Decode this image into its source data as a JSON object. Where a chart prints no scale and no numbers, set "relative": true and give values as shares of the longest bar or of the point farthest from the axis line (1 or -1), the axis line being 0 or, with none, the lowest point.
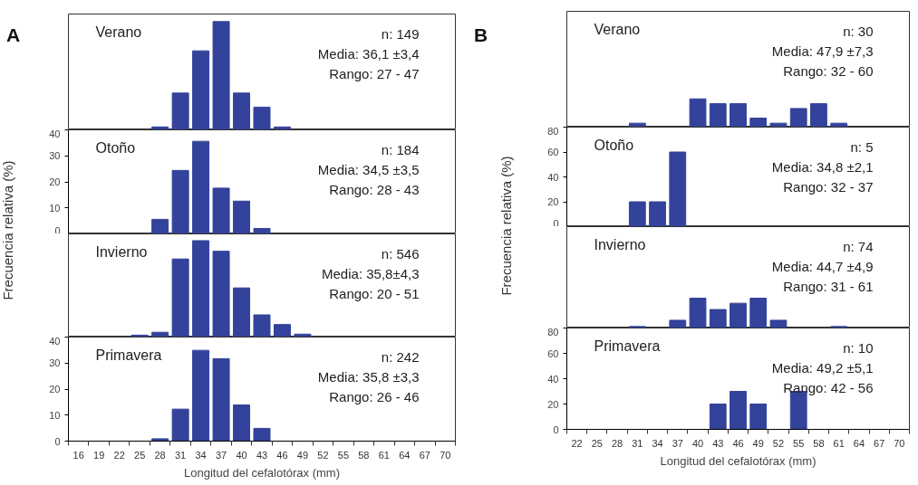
{
  "chart_data": [
    {
      "type": "bar",
      "relative": true,
      "title": "Verano",
      "tick_labels": false,
      "color": "#33429a",
      "categories": [
        "16",
        "19",
        "22",
        "25",
        "28",
        "31",
        "34",
        "37",
        "40",
        "43",
        "46",
        "49",
        "52",
        "55",
        "58",
        "61",
        "64",
        "67",
        "70"
      ],
      "values": [
        null,
        null,
        null,
        null,
        0.027,
        0.34,
        0.73,
        1,
        0.34,
        0.21,
        0.027,
        null,
        null,
        null,
        null,
        null,
        null,
        null,
        null
      ],
      "annotations": [
        "n: 149",
        "Media: 36,1 ±3,4",
        "Rango: 27 - 47",
        "A"
      ]
    },
    {
      "type": "bar",
      "title": "Otoño",
      "ylabel": "Frecuencia relativa (%)",
      "tick_labels": "y",
      "color": "#33429a",
      "ylim": [
        0,
        40
      ],
      "yticks": [
        0,
        10,
        20,
        30,
        40
      ],
      "categories": [
        "16",
        "19",
        "22",
        "25",
        "28",
        "31",
        "34",
        "37",
        "40",
        "43",
        "46",
        "49",
        "52",
        "55",
        "58",
        "61",
        "64",
        "67",
        "70"
      ],
      "values": [
        null,
        null,
        null,
        null,
        5.6,
        24.4,
        35.6,
        17.6,
        12.6,
        2.1,
        null,
        null,
        null,
        null,
        null,
        null,
        null,
        null,
        null
      ],
      "annotations": [
        "n: 184",
        "Media: 34,5 ±3,5",
        "Rango: 28 - 43"
      ]
    },
    {
      "type": "bar",
      "relative": true,
      "title": "Invierno",
      "tick_labels": false,
      "color": "#33429a",
      "categories": [
        "16",
        "19",
        "22",
        "25",
        "28",
        "31",
        "34",
        "37",
        "40",
        "43",
        "46",
        "49",
        "52",
        "55",
        "58",
        "61",
        "64",
        "67",
        "70"
      ],
      "values": [
        null,
        null,
        null,
        0.02,
        0.05,
        0.81,
        1,
        0.89,
        0.51,
        0.23,
        0.13,
        0.03,
        null,
        null,
        null,
        null,
        null,
        null,
        null
      ],
      "annotations": [
        "n: 546",
        "Media: 35,8±4,3",
        "Rango: 20 - 51"
      ]
    },
    {
      "type": "bar",
      "title": "Primavera",
      "xlabel": "Longitud del cefalotórax (mm)",
      "color": "#33429a",
      "ylim": [
        0,
        40
      ],
      "yticks": [
        0,
        10,
        20,
        30,
        40
      ],
      "categories": [
        "16",
        "19",
        "22",
        "25",
        "28",
        "31",
        "34",
        "37",
        "40",
        "43",
        "46",
        "49",
        "52",
        "55",
        "58",
        "61",
        "64",
        "67",
        "70"
      ],
      "values": [
        null,
        null,
        null,
        null,
        0.9,
        12.3,
        34.9,
        31.7,
        13.9,
        4.9,
        null,
        null,
        null,
        null,
        null,
        null,
        null,
        null,
        null
      ],
      "annotations": [
        "n: 242",
        "Media: 35,8 ±3,3",
        "Rango: 26 - 46"
      ]
    },
    {
      "type": "bar",
      "relative": true,
      "title": "Verano",
      "tick_labels": false,
      "color": "#33429a",
      "categories": [
        "22",
        "25",
        "28",
        "31",
        "34",
        "37",
        "40",
        "43",
        "46",
        "49",
        "52",
        "55",
        "58",
        "61",
        "64",
        "67",
        "70"
      ],
      "values": [
        null,
        null,
        null,
        0.14,
        null,
        null,
        1,
        0.83,
        0.83,
        0.32,
        0.14,
        0.66,
        0.83,
        0.14,
        null,
        null,
        null
      ],
      "annotations": [
        "n: 30",
        "Media: 47,9 ±7,3",
        "Rango: 32 - 60",
        "B"
      ]
    },
    {
      "type": "bar",
      "title": "Otoño",
      "ylabel": "Frecuencia relativa (%)",
      "tick_labels": "y",
      "color": "#33429a",
      "ylim": [
        0,
        80
      ],
      "yticks": [
        0,
        20,
        40,
        60,
        80
      ],
      "categories": [
        "22",
        "25",
        "28",
        "31",
        "34",
        "37",
        "40",
        "43",
        "46",
        "49",
        "52",
        "55",
        "58",
        "61",
        "64",
        "67",
        "70"
      ],
      "values": [
        null,
        null,
        null,
        20,
        20,
        60,
        null,
        null,
        null,
        null,
        null,
        null,
        null,
        null,
        null,
        null,
        null
      ],
      "annotations": [
        "n: 5",
        "Media: 34,8 ±2,1",
        "Rango: 32 - 37"
      ]
    },
    {
      "type": "bar",
      "relative": true,
      "title": "Invierno",
      "tick_labels": false,
      "color": "#33429a",
      "categories": [
        "22",
        "25",
        "28",
        "31",
        "34",
        "37",
        "40",
        "43",
        "46",
        "49",
        "52",
        "55",
        "58",
        "61",
        "64",
        "67",
        "70"
      ],
      "values": [
        null,
        null,
        null,
        0.05,
        null,
        0.26,
        1,
        0.62,
        0.83,
        1,
        0.26,
        null,
        null,
        0.05,
        null,
        null,
        null
      ],
      "annotations": [
        "n: 74",
        "Media: 44,7 ±4,9",
        "Rango: 31 - 61"
      ]
    },
    {
      "type": "bar",
      "title": "Primavera",
      "xlabel": "Longitud del cefalotórax (mm)",
      "color": "#33429a",
      "ylim": [
        0,
        80
      ],
      "yticks": [
        0,
        20,
        40,
        60,
        80
      ],
      "categories": [
        "22",
        "25",
        "28",
        "31",
        "34",
        "37",
        "40",
        "43",
        "46",
        "49",
        "52",
        "55",
        "58",
        "61",
        "64",
        "67",
        "70"
      ],
      "values": [
        null,
        null,
        null,
        null,
        null,
        null,
        null,
        20,
        30,
        20,
        null,
        30,
        null,
        null,
        null,
        null,
        null
      ],
      "annotations": [
        "n: 10",
        "Media: 49,2 ±5,1",
        "Rango: 42 - 56"
      ]
    }
  ]
}
